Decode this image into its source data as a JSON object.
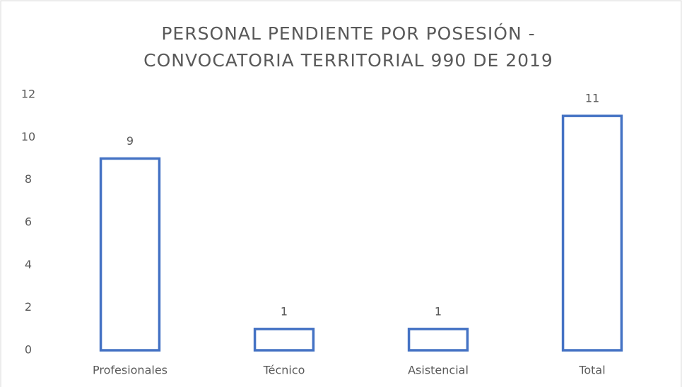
{
  "chart_data": {
    "type": "bar",
    "title": [
      "PERSONAL PENDIENTE POR POSESIÓN -",
      "CONVOCATORIA TERRITORIAL 990 DE 2019"
    ],
    "categories": [
      "Profesionales",
      "Técnico",
      "Asistencial",
      "Total"
    ],
    "values": [
      9,
      1,
      1,
      11
    ],
    "color": "#4472c4",
    "ylim": [
      0,
      12
    ],
    "yticks": [
      0,
      2,
      4,
      6,
      8,
      10,
      12
    ],
    "grid": false
  }
}
